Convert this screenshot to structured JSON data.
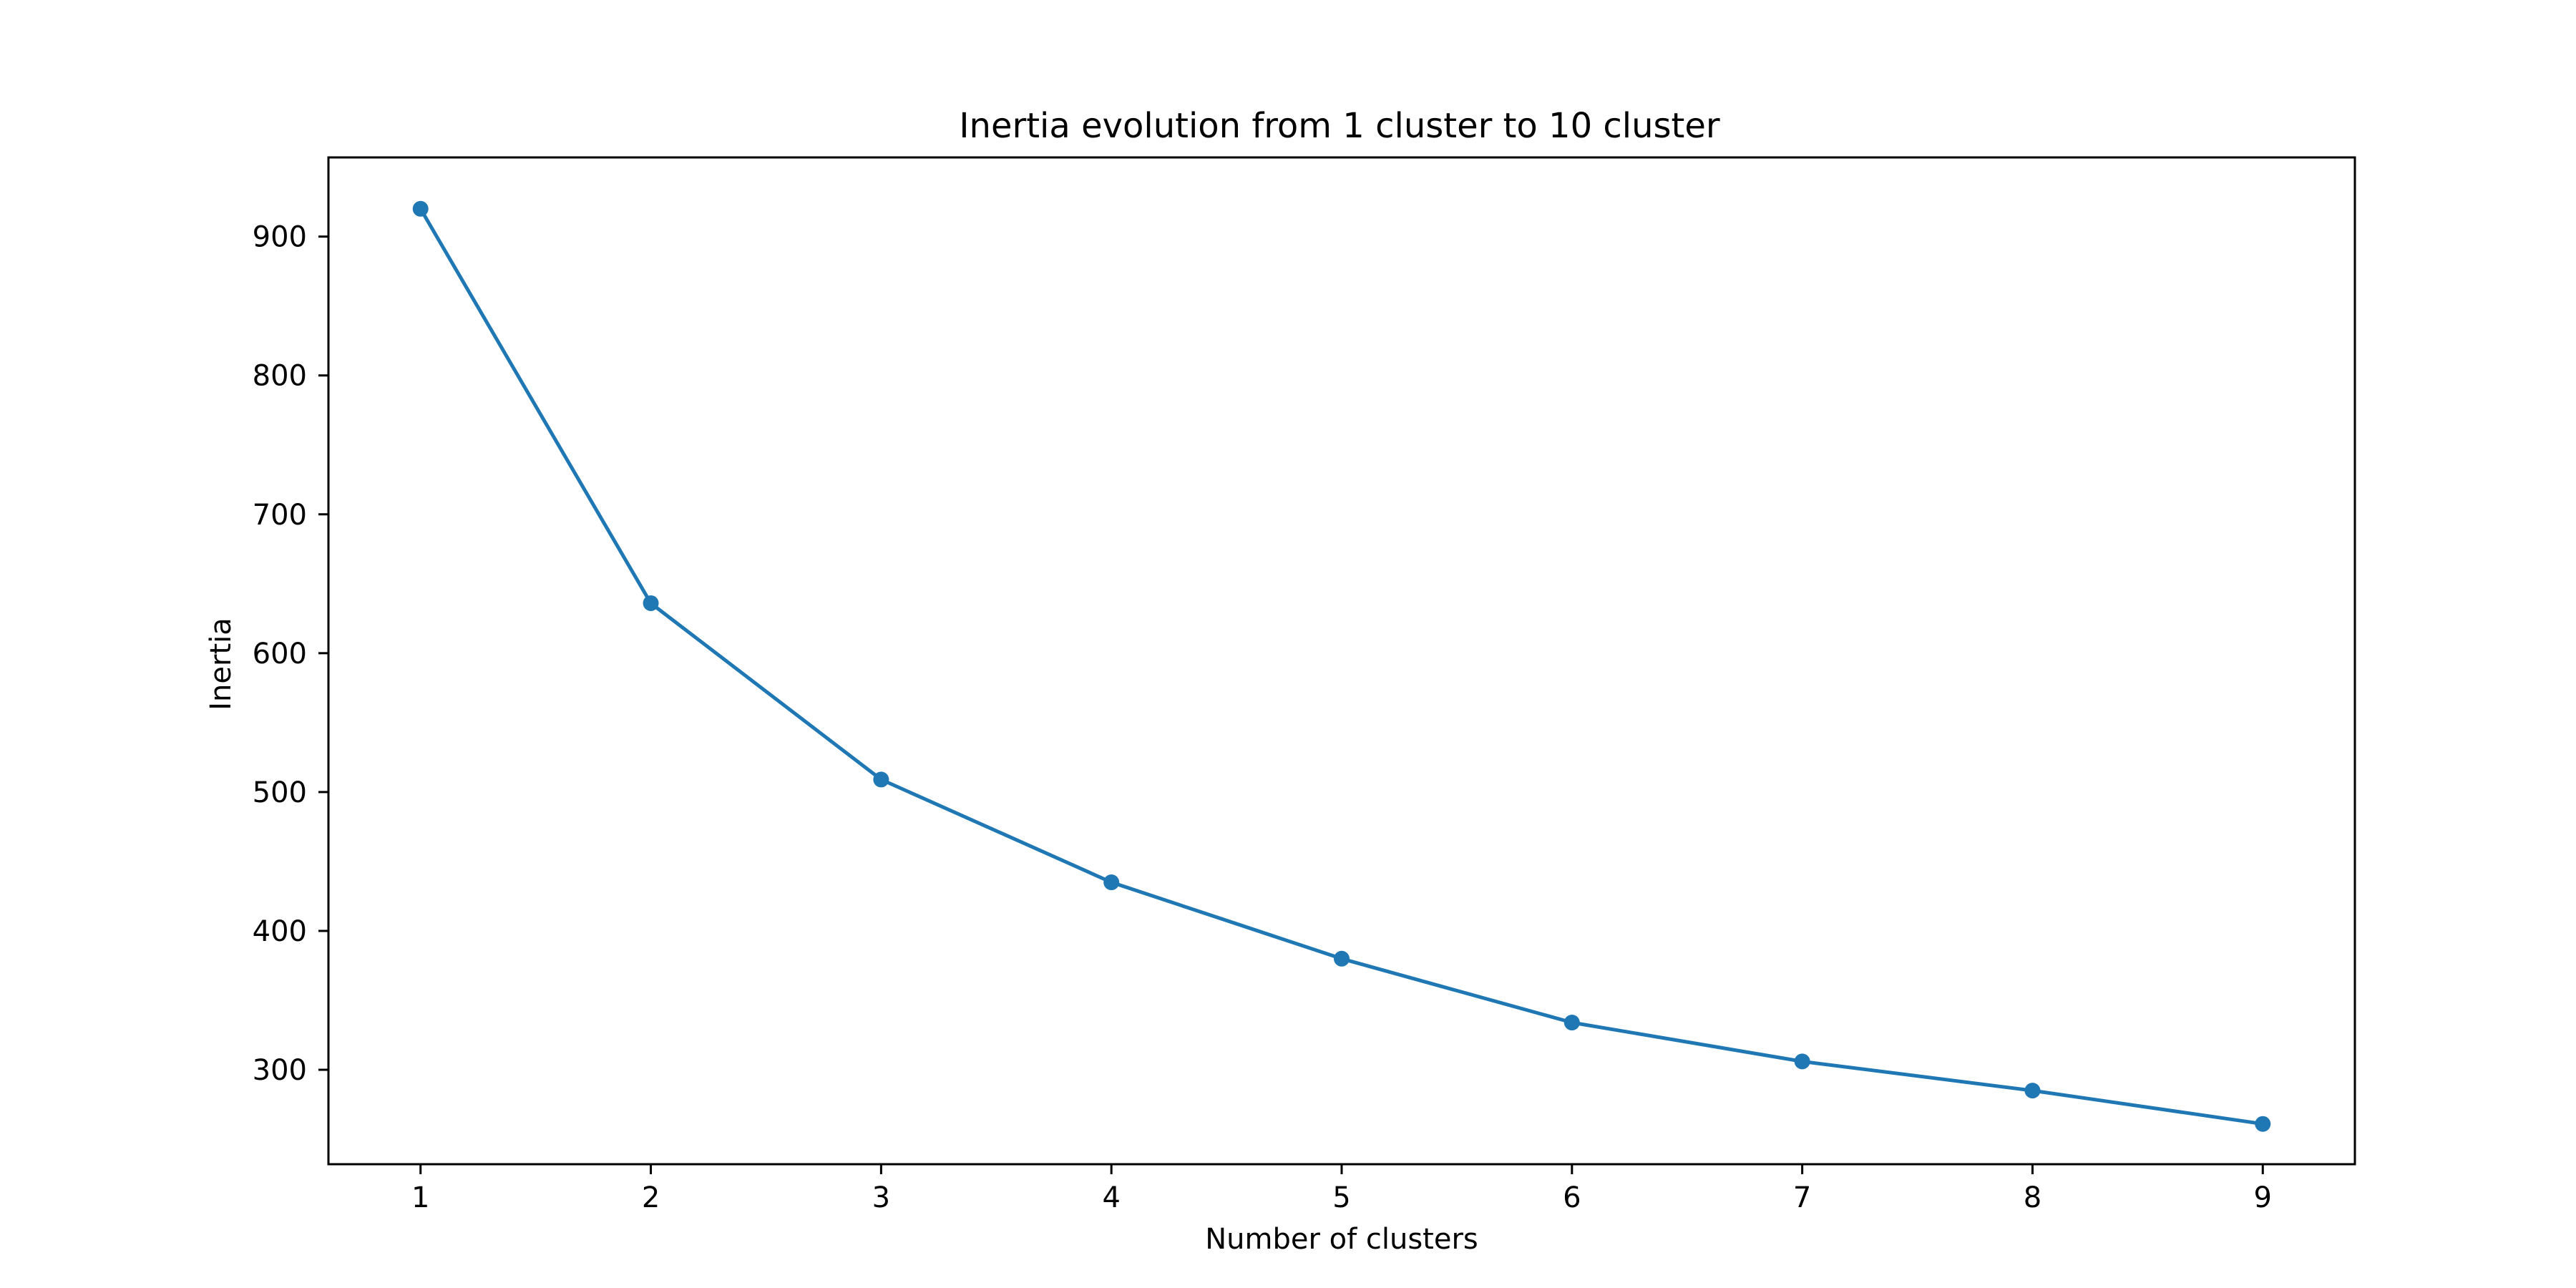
{
  "chart_data": {
    "type": "line",
    "title": "Inertia evolution from 1 cluster to 10 cluster",
    "xlabel": "Number of clusters",
    "ylabel": "Inertia",
    "x": [
      1,
      2,
      3,
      4,
      5,
      6,
      7,
      8,
      9
    ],
    "series": [
      {
        "values": [
          920,
          636,
          509,
          435,
          380,
          334,
          306,
          285,
          261
        ],
        "color": "#1f77b4",
        "marker": "circle"
      }
    ],
    "xlim": [
      0.6,
      9.4
    ],
    "ylim": [
      232,
      957
    ],
    "xticks": [
      1,
      2,
      3,
      4,
      5,
      6,
      7,
      8,
      9
    ],
    "xtick_labels": [
      "1",
      "2",
      "3",
      "4",
      "5",
      "6",
      "7",
      "8",
      "9"
    ],
    "yticks": [
      300,
      400,
      500,
      600,
      700,
      800,
      900
    ],
    "ytick_labels": [
      "300",
      "400",
      "500",
      "600",
      "700",
      "800",
      "900"
    ],
    "grid": false,
    "legend": "none"
  }
}
